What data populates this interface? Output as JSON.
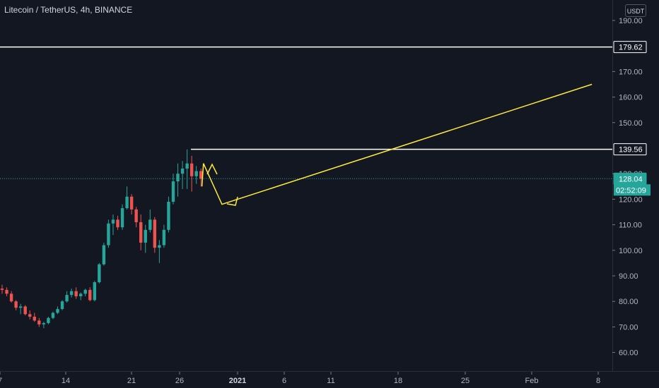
{
  "header": {
    "symbol": "Litecoin / TetherUS",
    "interval": "4h",
    "exchange": "BINANCE"
  },
  "price_scale": {
    "currency_button": "USDT",
    "ticks": [
      "190.00",
      "170.00",
      "160.00",
      "150.00",
      "130.00",
      "120.00",
      "110.00",
      "100.00",
      "90.00",
      "80.00",
      "70.00",
      "60.00"
    ],
    "line_labels": [
      "179.62",
      "139.56"
    ],
    "last_price": "128.04",
    "countdown": "02:52:09"
  },
  "time_scale": {
    "ticks": [
      "7",
      "14",
      "21",
      "26",
      "2021",
      "6",
      "11",
      "18",
      "25",
      "Feb",
      "8"
    ]
  },
  "colors": {
    "background": "#131722",
    "up": "#26a69a",
    "down": "#ef5350",
    "drawing": "#ffeb3b",
    "level_line": "#ffffff",
    "last_price_badge": "#26a69a",
    "text": "#b2b5be"
  },
  "chart_data": {
    "type": "candlestick",
    "title": "Litecoin / TetherUS, 4h, BINANCE",
    "ylim": [
      55,
      195
    ],
    "x_start": "2020-12-07",
    "x_end": "2021-02-09",
    "candles": [
      [
        "2020-12-07",
        85.0,
        86.5,
        83.0,
        84.5
      ],
      [
        "2020-12-07T12",
        84.5,
        85.5,
        82.0,
        83.0
      ],
      [
        "2020-12-08",
        83.0,
        84.0,
        79.5,
        80.0
      ],
      [
        "2020-12-08T12",
        80.0,
        80.5,
        76.5,
        77.5
      ],
      [
        "2020-12-09",
        77.5,
        79.0,
        75.0,
        78.0
      ],
      [
        "2020-12-09T12",
        78.0,
        78.5,
        74.5,
        75.0
      ],
      [
        "2020-12-10",
        75.0,
        76.5,
        73.0,
        74.0
      ],
      [
        "2020-12-10T12",
        74.0,
        75.5,
        72.0,
        72.5
      ],
      [
        "2020-12-11",
        72.5,
        73.5,
        70.0,
        71.0
      ],
      [
        "2020-12-11T12",
        71.0,
        72.0,
        69.5,
        71.5
      ],
      [
        "2020-12-12",
        71.5,
        74.0,
        71.0,
        73.5
      ],
      [
        "2020-12-12T12",
        73.5,
        76.0,
        73.0,
        75.5
      ],
      [
        "2020-12-13",
        75.5,
        78.0,
        75.0,
        77.0
      ],
      [
        "2020-12-13T12",
        77.0,
        80.5,
        76.5,
        80.0
      ],
      [
        "2020-12-14",
        80.0,
        84.0,
        79.5,
        82.5
      ],
      [
        "2020-12-14T12",
        82.5,
        85.0,
        81.5,
        84.0
      ],
      [
        "2020-12-15",
        84.0,
        85.5,
        81.0,
        82.0
      ],
      [
        "2020-12-15T12",
        82.0,
        83.5,
        80.5,
        83.0
      ],
      [
        "2020-12-16",
        83.0,
        85.0,
        82.0,
        84.5
      ],
      [
        "2020-12-16T12",
        84.5,
        85.5,
        80.0,
        80.5
      ],
      [
        "2020-12-17",
        80.5,
        88.0,
        80.0,
        87.5
      ],
      [
        "2020-12-17T12",
        87.5,
        95.0,
        87.0,
        94.5
      ],
      [
        "2020-12-18",
        94.5,
        103.0,
        94.0,
        102.0
      ],
      [
        "2020-12-18T12",
        102.0,
        112.0,
        101.0,
        110.5
      ],
      [
        "2020-12-19",
        110.5,
        114.0,
        106.0,
        112.0
      ],
      [
        "2020-12-19T12",
        112.0,
        113.5,
        108.0,
        109.0
      ],
      [
        "2020-12-20",
        109.0,
        118.0,
        108.0,
        116.5
      ],
      [
        "2020-12-20T12",
        116.5,
        125.0,
        116.0,
        121.0
      ],
      [
        "2020-12-21",
        121.0,
        122.0,
        114.0,
        116.0
      ],
      [
        "2020-12-21T12",
        116.0,
        117.0,
        109.0,
        111.0
      ],
      [
        "2020-12-22",
        111.0,
        114.0,
        100.0,
        103.0
      ],
      [
        "2020-12-22T12",
        103.0,
        110.0,
        99.0,
        108.0
      ],
      [
        "2020-12-23",
        108.0,
        116.0,
        107.0,
        112.0
      ],
      [
        "2020-12-23T12",
        112.0,
        113.0,
        99.0,
        101.0
      ],
      [
        "2020-12-24",
        101.0,
        104.0,
        95.0,
        102.0
      ],
      [
        "2020-12-24T12",
        102.0,
        110.0,
        101.0,
        108.0
      ],
      [
        "2020-12-25",
        108.0,
        121.0,
        107.0,
        119.0
      ],
      [
        "2020-12-25T12",
        119.0,
        130.0,
        118.0,
        127.0
      ],
      [
        "2020-12-26",
        127.0,
        134.0,
        121.0,
        130.0
      ],
      [
        "2020-12-26T12",
        130.0,
        135.0,
        124.0,
        132.0
      ],
      [
        "2020-12-27",
        132.0,
        139.5,
        124.0,
        134.0
      ],
      [
        "2020-12-27T12",
        134.0,
        137.0,
        123.0,
        129.0
      ],
      [
        "2020-12-28",
        129.0,
        133.0,
        126.0,
        131.0
      ],
      [
        "2020-12-28T12",
        131.0,
        132.0,
        125.0,
        128.04
      ]
    ],
    "horizontal_levels": [
      179.62,
      139.56
    ],
    "last_price": 128.04,
    "drawings": [
      {
        "type": "path",
        "points": [
          [
            "2020-12-28T20",
            125
          ],
          [
            "2020-12-29",
            134
          ],
          [
            "2020-12-31",
            118
          ],
          [
            "2021-02-09",
            165
          ]
        ]
      }
    ]
  }
}
